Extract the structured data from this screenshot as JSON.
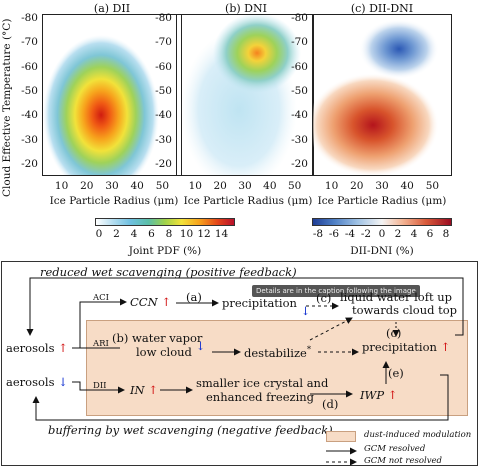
{
  "panels": [
    {
      "title": "(a) DII"
    },
    {
      "title": "(b) DNI"
    },
    {
      "title": "(c) DII-DNI"
    }
  ],
  "y_axis": {
    "label": "Cloud Effective Temperature (°C)",
    "ticks": [
      "-80",
      "-70",
      "-60",
      "-50",
      "-40",
      "-30",
      "-20"
    ]
  },
  "x_axis": {
    "label": "Ice Particle Radius (μm)",
    "ticks": [
      "10",
      "20",
      "30",
      "40",
      "50"
    ]
  },
  "colorbars": [
    {
      "ticks": [
        "0",
        "2",
        "4",
        "6",
        "8",
        "10",
        "12",
        "14"
      ],
      "label": "Joint PDF (%)"
    },
    {
      "ticks": [
        "-8",
        "-6",
        "-4",
        "-2",
        "0",
        "2",
        "4",
        "6",
        "8"
      ],
      "label": "DII-DNI (%)"
    }
  ],
  "diagram": {
    "top_feedback": "reduced wet scavenging (positive feedback)",
    "bottom_feedback": "buffering by wet scavenging (negative feedback)",
    "aerosols_up": "aerosols",
    "aerosols_down": "aerosols",
    "aci": "ACI",
    "ari": "ARI",
    "dii": "DII",
    "ccn": "CCN",
    "a": "(a)",
    "b": "(b)",
    "c": "(c)",
    "c2": "(c)",
    "d": "(d)",
    "e": "(e)",
    "precip1": "precipitation",
    "liquid1": "liquid water loft up",
    "liquid2": "towards cloud top",
    "wv1": "water vapor",
    "wv2": "low cloud",
    "destab": "destabilize",
    "destab_mark": "*",
    "precip2": "precipitation",
    "in": "IN",
    "ice1": "smaller ice crystal and",
    "ice2": "enhanced freezing",
    "iwp": "IWP",
    "tooltip": "Details are in the caption following the image",
    "legend": {
      "box": "dust-induced modulation",
      "solid": "GCM resolved",
      "dashed": "GCM not resolved"
    }
  }
}
